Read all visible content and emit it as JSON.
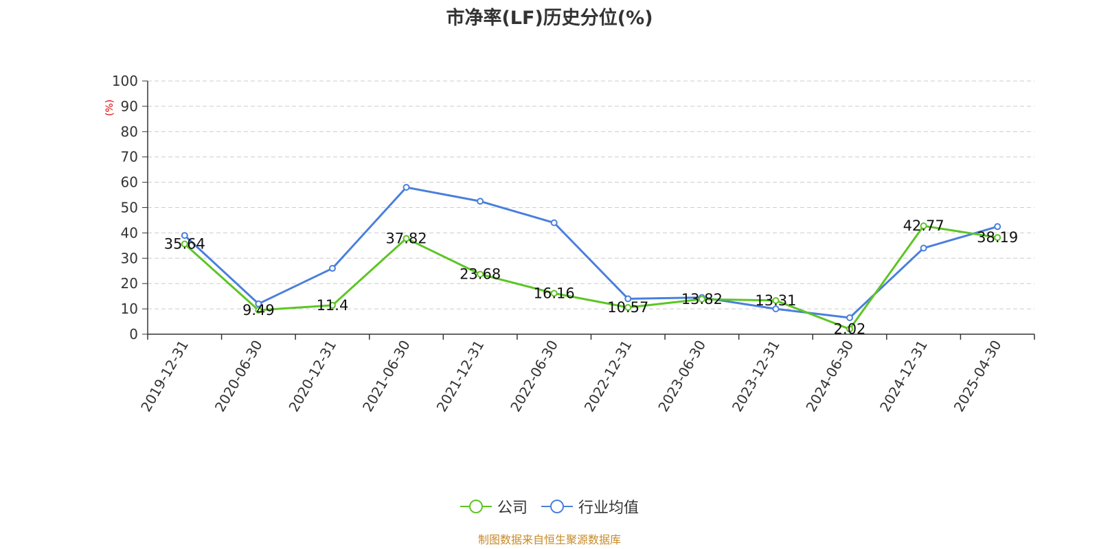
{
  "chart_data": {
    "type": "line",
    "title": "市净率(LF)历史分位(%)",
    "xlabel": "",
    "ylabel": "(%)",
    "ylim": [
      0,
      100
    ],
    "yticks": [
      0,
      10,
      20,
      30,
      40,
      50,
      60,
      70,
      80,
      90,
      100
    ],
    "categories": [
      "2019-12-31",
      "2020-06-30",
      "2020-12-31",
      "2021-06-30",
      "2021-12-31",
      "2022-06-30",
      "2022-12-31",
      "2023-06-30",
      "2023-12-31",
      "2024-06-30",
      "2024-12-31",
      "2025-04-30"
    ],
    "grid": true,
    "legend_position": "bottom",
    "series": [
      {
        "name": "公司",
        "color": "#5cc524",
        "values": [
          35.64,
          9.49,
          11.4,
          37.82,
          23.68,
          16.16,
          10.57,
          13.82,
          13.31,
          2.02,
          42.77,
          38.19
        ],
        "data_labels": [
          "35.64",
          "9.49",
          "11.4",
          "37.82",
          "23.68",
          "16.16",
          "10.57",
          "13.82",
          "13.31",
          "2.02",
          "42.77",
          "38.19"
        ]
      },
      {
        "name": "行业均值",
        "color": "#4a7fdc",
        "values": [
          39,
          12,
          26,
          58,
          52.5,
          44,
          14,
          14.5,
          10,
          6.5,
          34,
          42.5
        ]
      }
    ],
    "source": "制图数据来自恒生聚源数据库"
  }
}
